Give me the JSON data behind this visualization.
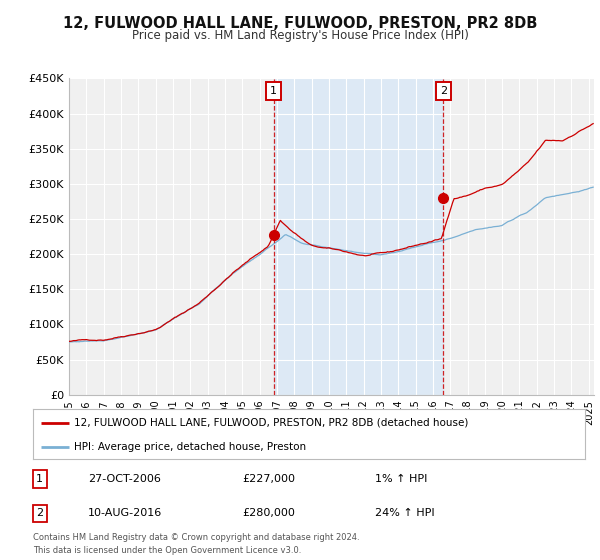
{
  "title": "12, FULWOOD HALL LANE, FULWOOD, PRESTON, PR2 8DB",
  "subtitle": "Price paid vs. HM Land Registry's House Price Index (HPI)",
  "ylim": [
    0,
    450000
  ],
  "xlim_start": 1995.0,
  "xlim_end": 2025.3,
  "yticks": [
    0,
    50000,
    100000,
    150000,
    200000,
    250000,
    300000,
    350000,
    400000,
    450000
  ],
  "ytick_labels": [
    "£0",
    "£50K",
    "£100K",
    "£150K",
    "£200K",
    "£250K",
    "£300K",
    "£350K",
    "£400K",
    "£450K"
  ],
  "xtick_years": [
    1995,
    1996,
    1997,
    1998,
    1999,
    2000,
    2001,
    2002,
    2003,
    2004,
    2005,
    2006,
    2007,
    2008,
    2009,
    2010,
    2011,
    2012,
    2013,
    2014,
    2015,
    2016,
    2017,
    2018,
    2019,
    2020,
    2021,
    2022,
    2023,
    2024,
    2025
  ],
  "hpi_color": "#7ab0d4",
  "price_color": "#cc0000",
  "sale1_x": 2006.82,
  "sale1_y": 227000,
  "sale2_x": 2016.61,
  "sale2_y": 280000,
  "sale1_label": "1",
  "sale2_label": "2",
  "vline_color": "#cc0000",
  "shading_color": "#dde9f5",
  "legend_label1": "12, FULWOOD HALL LANE, FULWOOD, PRESTON, PR2 8DB (detached house)",
  "legend_label2": "HPI: Average price, detached house, Preston",
  "annotation1_date": "27-OCT-2006",
  "annotation1_price": "£227,000",
  "annotation1_hpi": "1% ↑ HPI",
  "annotation2_date": "10-AUG-2016",
  "annotation2_price": "£280,000",
  "annotation2_hpi": "24% ↑ HPI",
  "footer": "Contains HM Land Registry data © Crown copyright and database right 2024.\nThis data is licensed under the Open Government Licence v3.0.",
  "background_color": "#ffffff",
  "plot_bg_color": "#f0f0f0"
}
